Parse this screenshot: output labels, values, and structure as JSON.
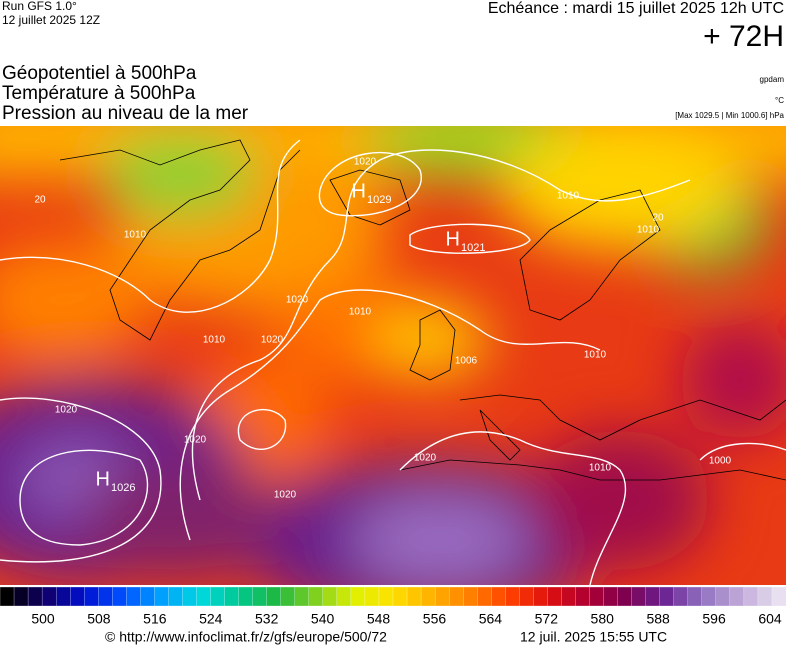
{
  "header": {
    "run": "Run GFS 1.0°",
    "run_date": "12 juillet 2025 12Z",
    "echeance": "Echéance : mardi 15 juillet 2025 12h UTC",
    "lead": "+ 72H"
  },
  "titles": [
    "Géopotentiel à 500hPa",
    "Température à 500hPa",
    "Pression au niveau de la mer"
  ],
  "units": [
    "gpdam",
    "°C",
    "[Max 1029.5 | Min 1000.6] hPa"
  ],
  "highs": [
    {
      "letter": "H",
      "value": "1029"
    },
    {
      "letter": "H",
      "value": "1021"
    },
    {
      "letter": "H",
      "value": "1026"
    }
  ],
  "isobar_labels": [
    "1020",
    "1010",
    "1010",
    "1020",
    "1010",
    "1020",
    "1010",
    "1020",
    "1020",
    "1020",
    "1020",
    "1010",
    "1000",
    "1010",
    "1010",
    "1006",
    "20",
    "20"
  ],
  "scale": {
    "ticks": [
      500,
      508,
      516,
      524,
      532,
      540,
      548,
      556,
      564,
      572,
      580,
      588,
      596,
      604
    ]
  },
  "footer": {
    "url": "© http://www.infoclimat.fr/z/gfs/europe/500/72",
    "timestamp": "12 juil. 2025 15:55 UTC"
  }
}
